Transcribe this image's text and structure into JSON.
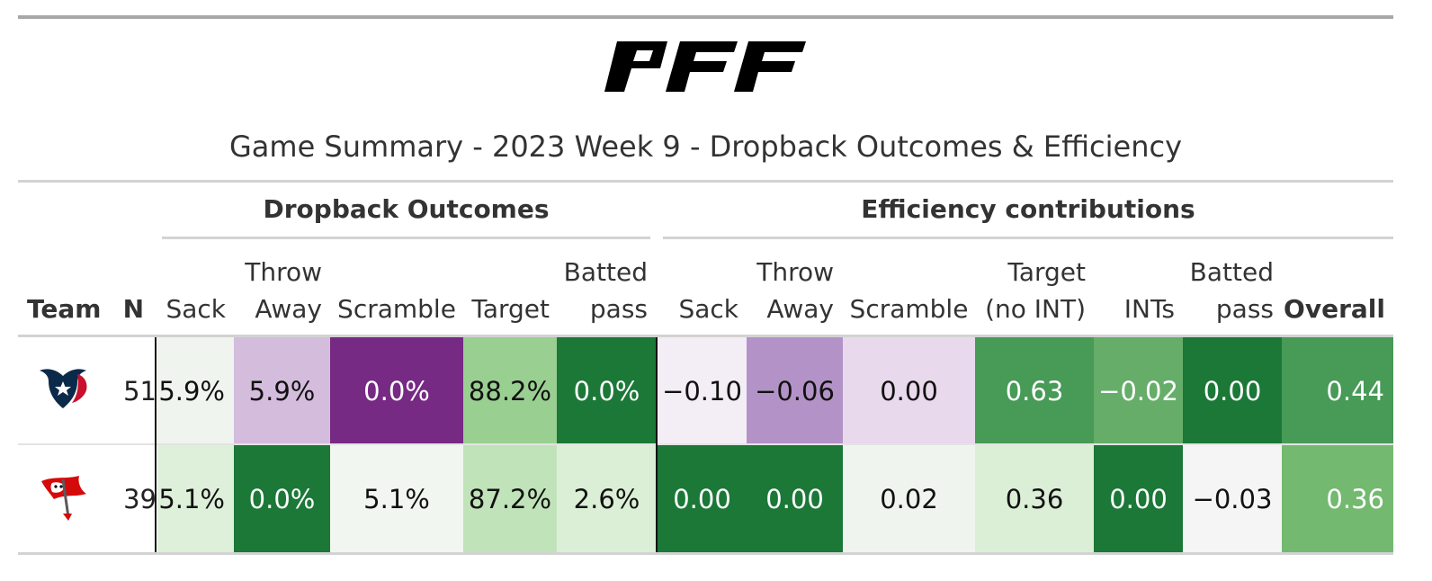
{
  "title": "Game Summary - 2023 Week 9 - Dropback Outcomes & Efficiency",
  "logo_text": "PFF",
  "spanners": {
    "outcomes": "Dropback Outcomes",
    "efficiency": "Efficiency contributions"
  },
  "columns": {
    "team": "Team",
    "n": "N",
    "out_sack": [
      "",
      "Sack"
    ],
    "out_throw": [
      "Throw",
      "Away"
    ],
    "out_scramble": [
      "",
      "Scramble"
    ],
    "out_target": [
      "",
      "Target"
    ],
    "out_batted": [
      "Batted",
      "pass"
    ],
    "eff_sack": [
      "",
      "Sack"
    ],
    "eff_throw": [
      "Throw",
      "Away"
    ],
    "eff_scramble": [
      "",
      "Scramble"
    ],
    "eff_target": [
      "Target",
      "(no INT)"
    ],
    "eff_ints": [
      "",
      "INTs"
    ],
    "eff_batted": [
      "Batted",
      "pass"
    ],
    "overall": "Overall"
  },
  "rows": [
    {
      "team_icon": "houston-texans-logo-icon",
      "n": "51",
      "out_sack": "5.9%",
      "out_throw": "5.9%",
      "out_scramble": "0.0%",
      "out_target": "88.2%",
      "out_batted": "0.0%",
      "eff_sack": "−0.10",
      "eff_throw": "−0.06",
      "eff_scramble": "0.00",
      "eff_target": "0.63",
      "eff_ints": "−0.02",
      "eff_batted": "0.00",
      "overall": "0.44",
      "colors": {
        "out_sack": "#eff5ee",
        "out_throw": "#d4bcdd",
        "out_scramble": "#762a83",
        "out_target": "#9acf92",
        "out_batted": "#1b7837",
        "eff_sack": "#f3edf5",
        "eff_throw": "#b393c7",
        "eff_scramble": "#e9d9ec",
        "eff_target": "#489a57",
        "eff_ints": "#66ad6a",
        "eff_batted": "#1b7837",
        "overall": "#489a57"
      }
    },
    {
      "team_icon": "tampa-bay-buccaneers-logo-icon",
      "n": "39",
      "out_sack": "5.1%",
      "out_throw": "0.0%",
      "out_scramble": "5.1%",
      "out_target": "87.2%",
      "out_batted": "2.6%",
      "eff_sack": "0.00",
      "eff_throw": "0.00",
      "eff_scramble": "0.02",
      "eff_target": "0.36",
      "eff_ints": "0.00",
      "eff_batted": "−0.03",
      "overall": "0.36",
      "colors": {
        "out_sack": "#deefda",
        "out_throw": "#1b7837",
        "out_scramble": "#f1f6f0",
        "out_target": "#c0e3b9",
        "out_batted": "#dbefd6",
        "eff_sack": "#1b7837",
        "eff_throw": "#1b7837",
        "eff_scramble": "#eff5ee",
        "eff_target": "#dbefd6",
        "eff_ints": "#1b7837",
        "eff_batted": "#f5f5f5",
        "overall": "#73b96f"
      }
    }
  ]
}
